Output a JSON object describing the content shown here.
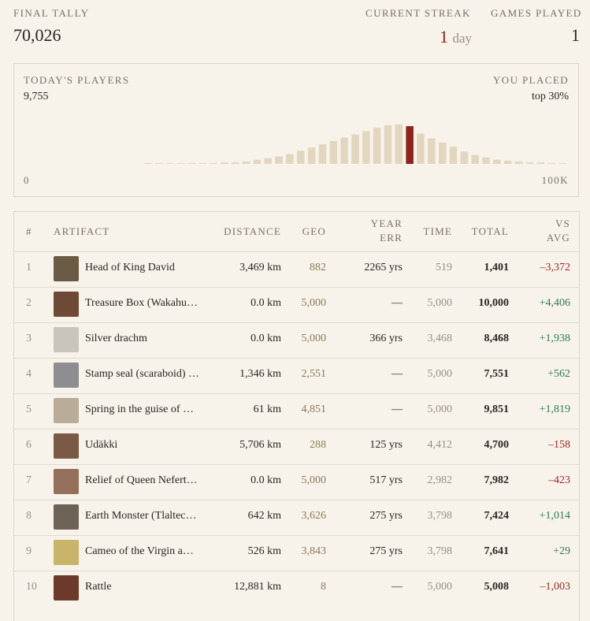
{
  "header": {
    "final_tally_label": "FINAL TALLY",
    "final_tally": "70,026",
    "streak_label": "CURRENT STREAK",
    "streak_value": "1",
    "streak_unit": "day",
    "games_label": "GAMES PLAYED",
    "games_value": "1"
  },
  "players_panel": {
    "label": "TODAY'S PLAYERS",
    "count": "9,755",
    "placed_label": "YOU PLACED",
    "placed_value": "top 30%",
    "axis_min": "0",
    "axis_max": "100K",
    "histogram": {
      "type": "bar",
      "values": [
        0,
        0,
        0,
        0,
        0,
        0,
        0,
        0,
        0,
        0,
        0,
        1,
        1,
        1,
        1,
        1,
        1,
        1,
        2,
        2,
        3,
        5,
        7,
        9,
        12,
        16,
        20,
        24,
        28,
        32,
        36,
        40,
        44,
        47,
        48,
        46,
        37,
        31,
        26,
        21,
        15,
        11,
        8,
        5,
        4,
        3,
        2,
        2,
        1,
        1
      ],
      "color": "#e2d6bf",
      "highlight_index": 35,
      "highlight_color": "#8c231c"
    }
  },
  "table": {
    "headers": [
      "#",
      "ARTIFACT",
      "DISTANCE",
      "GEO",
      "YEAR ERR",
      "TIME",
      "TOTAL",
      "VS AVG"
    ],
    "rows": [
      [
        "1",
        "Head of King David",
        "3,469 km",
        "882",
        "2265 yrs",
        "519",
        "1,401",
        "–3,372"
      ],
      [
        "2",
        "Treasure Box (Wakahu…",
        "0.0 km",
        "5,000",
        "—",
        "5,000",
        "10,000",
        "+4,406"
      ],
      [
        "3",
        "Silver drachm",
        "0.0 km",
        "5,000",
        "366 yrs",
        "3,468",
        "8,468",
        "+1,938"
      ],
      [
        "4",
        "Stamp seal (scaraboid) …",
        "1,346 km",
        "2,551",
        "—",
        "5,000",
        "7,551",
        "+562"
      ],
      [
        "5",
        "Spring in the guise of …",
        "61 km",
        "4,851",
        "—",
        "5,000",
        "9,851",
        "+1,819"
      ],
      [
        "6",
        "Udäkki",
        "5,706 km",
        "288",
        "125 yrs",
        "4,412",
        "4,700",
        "–158"
      ],
      [
        "7",
        "Relief of Queen Nefert…",
        "0.0 km",
        "5,000",
        "517 yrs",
        "2,982",
        "7,982",
        "–423"
      ],
      [
        "8",
        "Earth Monster (Tlaltec…",
        "642 km",
        "3,626",
        "275 yrs",
        "3,798",
        "7,424",
        "+1,014"
      ],
      [
        "9",
        "Cameo of the Virgin a…",
        "526 km",
        "3,843",
        "275 yrs",
        "3,798",
        "7,641",
        "+29"
      ],
      [
        "10",
        "Rattle",
        "12,881 km",
        "8",
        "—",
        "5,000",
        "5,008",
        "–1,003"
      ]
    ]
  }
}
